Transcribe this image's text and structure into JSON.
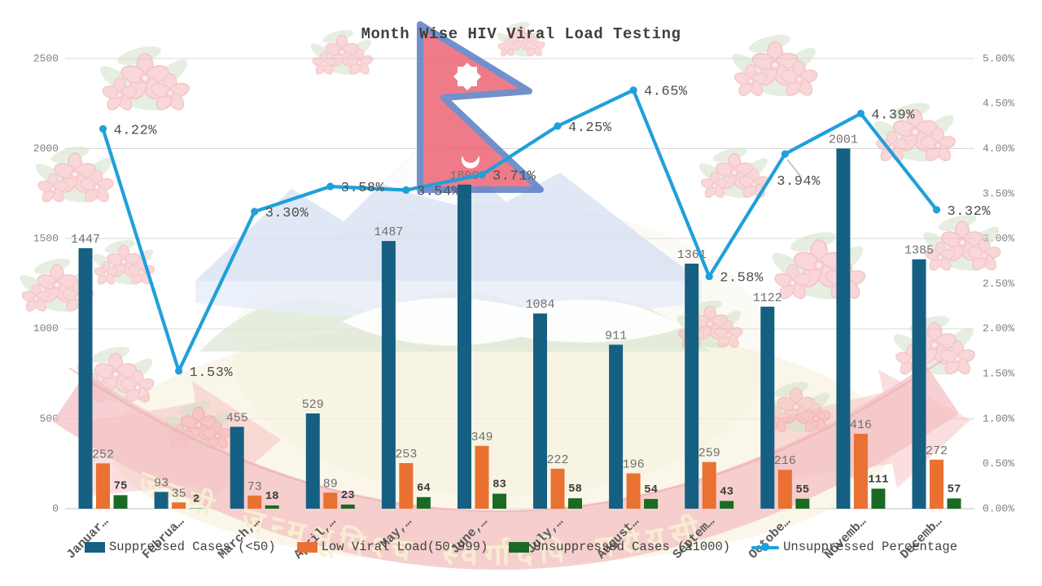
{
  "title": "Month Wise HIV Viral Load Testing",
  "colors": {
    "suppressed": "#156082",
    "low_viral_load": "#E97132",
    "unsuppressed": "#196B24",
    "percentage_line": "#1FA0DB",
    "gridline": "#D9D9D9",
    "axis_line": "#BFBFBF",
    "tick_text": "#7F7F7F",
    "bar_label": "#6E6E6E",
    "green_label": "#3A3A3A",
    "pct_label": "#4D4D4D",
    "month_label": "#595959",
    "leader_line": "#A6A6A6"
  },
  "watermark": {
    "ribbon_text": "जननी जन्मभूमिश्च स्वर्गादपि गरीयसी"
  },
  "chart_data": {
    "type": "combo (grouped bar + line, dual axis)",
    "title": "Month Wise HIV Viral Load Testing",
    "categories": [
      "Januar…",
      "Februa…",
      "March,…",
      "April,…",
      "May,…",
      "June,…",
      "July,…",
      "August…",
      "Septem…",
      "Octobe…",
      "Novemb…",
      "Decemb…"
    ],
    "series": [
      {
        "name": "Suppressed Cases (<50)",
        "type": "bar",
        "axis": "left",
        "values": [
          1447,
          93,
          455,
          529,
          1487,
          1800,
          1084,
          911,
          1361,
          1122,
          2001,
          1385
        ]
      },
      {
        "name": "Low Viral Load(50-999)",
        "type": "bar",
        "axis": "left",
        "values": [
          252,
          35,
          73,
          89,
          253,
          349,
          222,
          196,
          259,
          216,
          416,
          272
        ]
      },
      {
        "name": "Unsuppressed Cases (≥1000)",
        "type": "bar",
        "axis": "left",
        "values": [
          75,
          2,
          18,
          23,
          64,
          83,
          58,
          54,
          43,
          55,
          111,
          57
        ]
      },
      {
        "name": "Unsuppressed Percentage",
        "type": "line",
        "axis": "right",
        "values": [
          4.22,
          1.53,
          3.3,
          3.58,
          3.54,
          3.71,
          4.25,
          4.65,
          2.58,
          3.94,
          4.39,
          3.32
        ],
        "labels": [
          "4.22%",
          "1.53%",
          "3.30%",
          "3.58%",
          "3.54%",
          "3.71%",
          "4.25%",
          "4.65%",
          "2.58%",
          "3.94%",
          "4.39%",
          "3.32%"
        ]
      }
    ],
    "left_axis": {
      "min": 0,
      "max": 2500,
      "step": 500,
      "tick_labels": [
        "2500",
        "2000",
        "1500",
        "1000",
        "500",
        "0"
      ]
    },
    "right_axis": {
      "min": "0.00%",
      "max": "5.00%",
      "step": "0.50%",
      "tick_labels": [
        "5.00%",
        "4.50%",
        "4.00%",
        "3.50%",
        "3.00%",
        "2.50%",
        "2.00%",
        "1.50%",
        "1.00%",
        "0.50%",
        "0.00%"
      ]
    },
    "legend": [
      "Suppressed Cases (<50)",
      "Low Viral Load(50-999)",
      "Unsuppressed Cases (≥1000)",
      "Unsuppressed Percentage"
    ],
    "grid": "horizontal gridlines at every 500 / 1.00%",
    "legend_position": "bottom"
  }
}
